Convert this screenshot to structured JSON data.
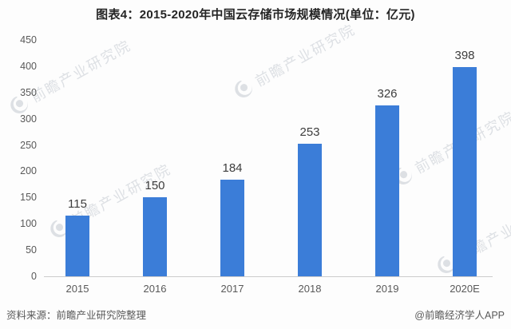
{
  "figure": {
    "title": "图表4：2015-2020年中国云存储市场规模情况(单位：亿元)",
    "source_note": "资料来源：前瞻产业研究院整理",
    "credit": "@前瞻经济学人APP",
    "watermark_text": "前瞻产业研究院"
  },
  "colors": {
    "bar": "#3b7dd8",
    "title": "#252525",
    "value_label": "#3d3d3d",
    "tick_label": "#595959",
    "axis_line": "#cccccc",
    "footer_text": "#595959",
    "watermark": "#aab2bd",
    "background": "#fdfdfd"
  },
  "chart_data": {
    "type": "bar",
    "title": "图表4：2015-2020年中国云存储市场规模情况(单位：亿元)",
    "unit": "亿元",
    "categories": [
      "2015",
      "2016",
      "2017",
      "2018",
      "2019",
      "2020E"
    ],
    "values": [
      115,
      150,
      184,
      253,
      326,
      398
    ],
    "xlabel": "",
    "ylabel": "",
    "ylim": [
      0,
      450
    ],
    "ytick_step": 50,
    "grid": false,
    "legend": null,
    "data_labels": true,
    "legend_position": "none"
  }
}
